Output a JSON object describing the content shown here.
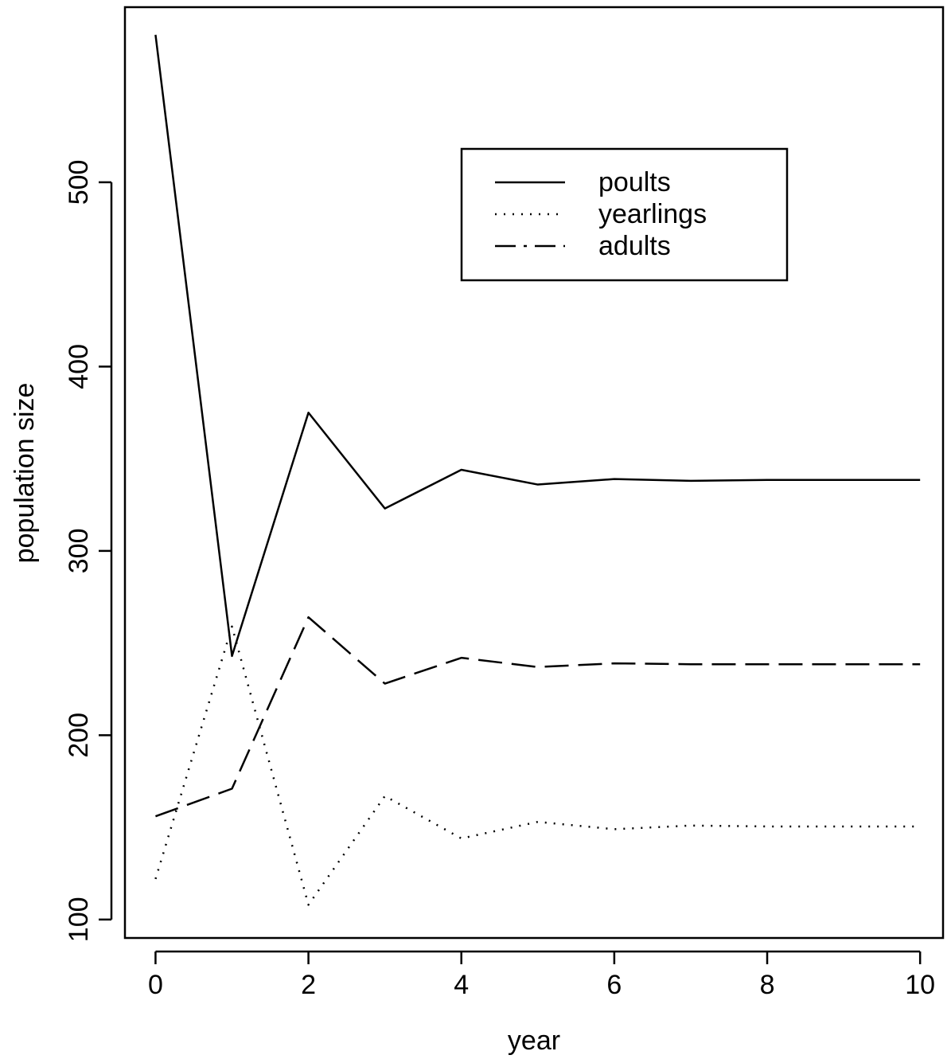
{
  "chart_data": {
    "type": "line",
    "title": "",
    "xlabel": "year",
    "ylabel": "population size",
    "x": [
      0,
      1,
      2,
      3,
      4,
      5,
      6,
      7,
      8,
      9,
      10
    ],
    "xlim": [
      -0.4,
      10.3
    ],
    "ylim": [
      90,
      595
    ],
    "xticks": [
      0,
      2,
      4,
      6,
      8,
      10
    ],
    "yticks": [
      100,
      200,
      300,
      400,
      500
    ],
    "grid": false,
    "legend_position": "top-right",
    "series": [
      {
        "name": "poults",
        "line_style": "solid",
        "values": [
          580,
          243,
          375,
          323,
          344,
          336,
          339,
          338,
          338.5,
          338.5,
          338.5
        ]
      },
      {
        "name": "yearlings",
        "line_style": "dotted",
        "values": [
          122,
          259,
          108,
          167,
          144,
          153,
          149,
          151,
          150.5,
          150.5,
          150.5
        ]
      },
      {
        "name": "adults",
        "line_style": "dashed",
        "values": [
          156,
          171,
          264,
          228,
          242,
          237,
          239,
          238.5,
          238.5,
          238.5,
          238.5
        ]
      }
    ]
  }
}
